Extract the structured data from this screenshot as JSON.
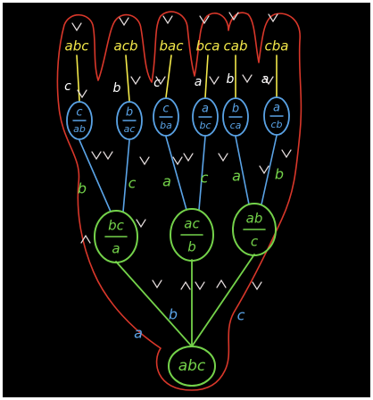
{
  "colors": {
    "background": "#000000",
    "frame": "#ffffff",
    "leaf_text": "#f2e84a",
    "leaf_edge_label": "#ffffff",
    "blue_node": "#5aa3e6",
    "blue_label": "#5aa3e6",
    "green_node": "#74d24a",
    "green_label": "#74d24a",
    "red_outline": "#d8372a",
    "arrow": "#e8e0e0"
  },
  "leaves": [
    "abc",
    "acb",
    "bac",
    "bca",
    "cab",
    "cba"
  ],
  "leaf_edge_labels": [
    "c",
    "b",
    "c",
    "a",
    "b",
    "a"
  ],
  "level1_nodes": [
    {
      "top": "c",
      "bottom": "ab"
    },
    {
      "top": "b",
      "bottom": "ac"
    },
    {
      "top": "c",
      "bottom": "ba"
    },
    {
      "top": "a",
      "bottom": "bc"
    },
    {
      "top": "b",
      "bottom": "ca"
    },
    {
      "top": "a",
      "bottom": "cb"
    }
  ],
  "level1_edge_labels": [
    "b",
    "c",
    "a",
    "c",
    "a",
    "b"
  ],
  "level2_nodes": [
    {
      "top": "bc",
      "bottom": "a"
    },
    {
      "top": "ac",
      "bottom": "b"
    },
    {
      "top": "ab",
      "bottom": "c"
    }
  ],
  "root_edge_labels": [
    "a",
    "b",
    "c"
  ],
  "root_label": "abc"
}
